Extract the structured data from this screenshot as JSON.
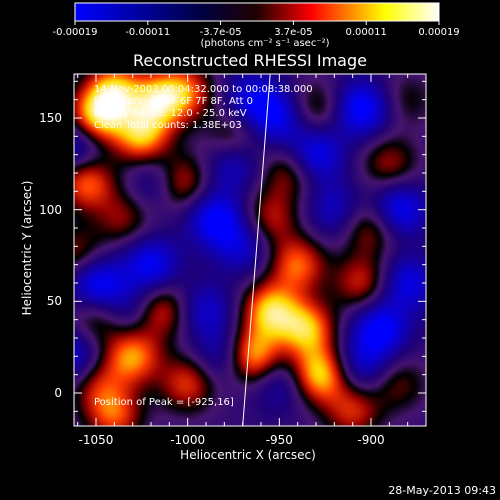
{
  "colorbar": {
    "tick_labels": [
      "-0.00019",
      "-0.00011",
      "-3.7e-05",
      "3.7e-05",
      "0.00011",
      "0.00019"
    ],
    "units": "(photons cm⁻² s⁻¹ asec⁻²)",
    "colors": [
      "#0000ff",
      "#000000",
      "#ff0000",
      "#ffff00",
      "#ffffff"
    ]
  },
  "info_lines": [
    "14-Nov-2003 00:04:32.000 to 00:08:38.000",
    "Detectors: 4F 5F 6F 7F 8F, Att 0",
    "Energy Range: 12.0 - 25.0 keV",
    "Clean     Total counts: 1.38E+03"
  ],
  "peak_text": "Position of Peak = [-925,16]",
  "timestamp": "28-May-2013 09:43",
  "chart_data": {
    "type": "heatmap",
    "title": "Reconstructed RHESSI Image",
    "xlabel": "Heliocentric X (arcsec)",
    "ylabel": "Heliocentric Y (arcsec)",
    "xlim": [
      -1062,
      -870
    ],
    "ylim": [
      -18,
      174
    ],
    "xticks": [
      -1050,
      -1000,
      -950,
      -900
    ],
    "yticks": [
      0,
      50,
      100,
      150
    ],
    "value_range": [
      -0.00019,
      0.00019
    ],
    "peak": {
      "x": -925,
      "y": 16
    },
    "limb_line": [
      [
        -970,
        -18
      ],
      [
        -955,
        174
      ]
    ],
    "blobs": [
      {
        "x": -1050,
        "y": 150,
        "v": 1.0
      },
      {
        "x": -1040,
        "y": 165,
        "v": 0.9
      },
      {
        "x": -1015,
        "y": 160,
        "v": 0.9
      },
      {
        "x": -1025,
        "y": 140,
        "v": 0.9
      },
      {
        "x": -1000,
        "y": 165,
        "v": 0.6
      },
      {
        "x": -1005,
        "y": 115,
        "v": 0.8
      },
      {
        "x": -1055,
        "y": 115,
        "v": 0.8
      },
      {
        "x": -1035,
        "y": 95,
        "v": 0.45
      },
      {
        "x": -1060,
        "y": 75,
        "v": 0.5
      },
      {
        "x": -1050,
        "y": 40,
        "v": 0.45
      },
      {
        "x": -1015,
        "y": 45,
        "v": 0.7
      },
      {
        "x": -1030,
        "y": 20,
        "v": 0.85
      },
      {
        "x": -1000,
        "y": 5,
        "v": 0.65
      },
      {
        "x": -1050,
        "y": 5,
        "v": 0.5
      },
      {
        "x": -1040,
        "y": -12,
        "v": 0.7
      },
      {
        "x": -955,
        "y": 45,
        "v": 0.95
      },
      {
        "x": -965,
        "y": 20,
        "v": 1.0
      },
      {
        "x": -935,
        "y": 35,
        "v": 0.9
      },
      {
        "x": -928,
        "y": 10,
        "v": 1.0
      },
      {
        "x": -940,
        "y": 70,
        "v": 0.75
      },
      {
        "x": -955,
        "y": 95,
        "v": 0.55
      },
      {
        "x": -945,
        "y": 120,
        "v": 0.5
      },
      {
        "x": -930,
        "y": 155,
        "v": 0.45
      },
      {
        "x": -900,
        "y": 90,
        "v": 0.55
      },
      {
        "x": -905,
        "y": 60,
        "v": 0.6
      },
      {
        "x": -890,
        "y": 125,
        "v": 0.5
      },
      {
        "x": -885,
        "y": 5,
        "v": 0.4
      },
      {
        "x": -880,
        "y": 160,
        "v": 0.3
      },
      {
        "x": -910,
        "y": -10,
        "v": 0.6
      },
      {
        "x": -975,
        "y": 140,
        "v": 0.45
      },
      {
        "x": -1050,
        "y": 60,
        "v": -0.8
      },
      {
        "x": -1020,
        "y": 70,
        "v": -0.7
      },
      {
        "x": -1015,
        "y": 115,
        "v": -0.55
      },
      {
        "x": -985,
        "y": 95,
        "v": -0.75
      },
      {
        "x": -975,
        "y": 125,
        "v": -0.5
      },
      {
        "x": -990,
        "y": 45,
        "v": -0.5
      },
      {
        "x": -980,
        "y": 20,
        "v": -0.5
      },
      {
        "x": -1060,
        "y": 135,
        "v": -0.6
      },
      {
        "x": -965,
        "y": 160,
        "v": -0.6
      },
      {
        "x": -930,
        "y": 130,
        "v": -0.7
      },
      {
        "x": -950,
        "y": 150,
        "v": -0.6
      },
      {
        "x": -905,
        "y": 155,
        "v": -0.8
      },
      {
        "x": -885,
        "y": 100,
        "v": -0.75
      },
      {
        "x": -920,
        "y": 100,
        "v": -0.45
      },
      {
        "x": -895,
        "y": 35,
        "v": -0.75
      },
      {
        "x": -880,
        "y": 60,
        "v": -0.6
      },
      {
        "x": -905,
        "y": 15,
        "v": -0.5
      },
      {
        "x": -950,
        "y": 5,
        "v": -0.4
      },
      {
        "x": -970,
        "y": 80,
        "v": -0.5
      },
      {
        "x": -1030,
        "y": 45,
        "v": -0.4
      },
      {
        "x": -1062,
        "y": 20,
        "v": -0.6
      }
    ]
  }
}
